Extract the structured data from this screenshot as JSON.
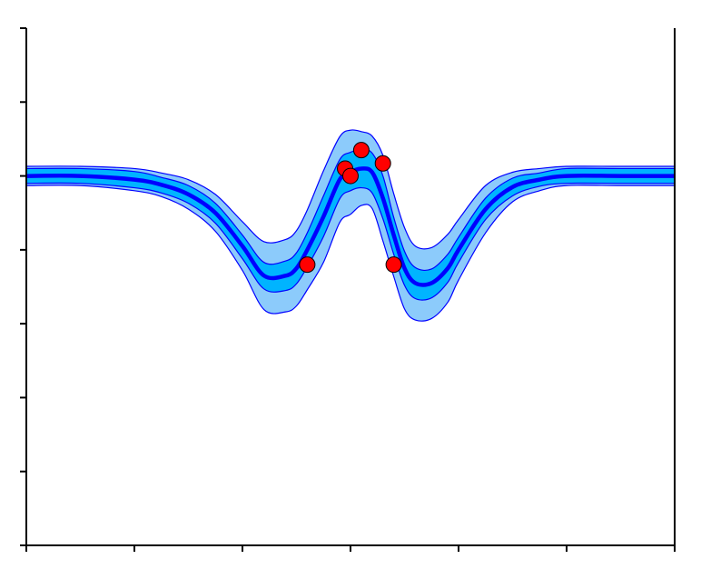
{
  "chart_data": {
    "type": "line",
    "title": "",
    "xlabel": "",
    "ylabel": "",
    "xlim": [
      -6,
      6
    ],
    "ylim": [
      -5,
      2
    ],
    "xticks": [
      -6,
      -4,
      -2,
      0,
      2,
      4,
      6
    ],
    "yticks": [
      -5,
      -4,
      -3,
      -2,
      -1,
      0,
      1,
      2
    ],
    "show_tick_labels": false,
    "grid": false,
    "legend": "none",
    "colors": {
      "mean": "#0000ff",
      "inner_band": "#00b4ff",
      "outer_band": "#8ccbfb",
      "band_edge": "#0000ff",
      "points": "#ff0000",
      "point_edge": "#000000"
    },
    "series": [
      {
        "kind": "mean",
        "x": [
          -6,
          -5,
          -4,
          -3.5,
          -3,
          -2.5,
          -2,
          -1.6,
          -1.2,
          -1,
          -0.8,
          -0.5,
          -0.2,
          0,
          0.2,
          0.4,
          0.6,
          0.8,
          1,
          1.2,
          1.5,
          1.8,
          2,
          2.5,
          3,
          3.5,
          4,
          5,
          6
        ],
        "y": [
          0,
          0,
          -0.05,
          -0.12,
          -0.25,
          -0.5,
          -0.95,
          -1.35,
          -1.35,
          -1.25,
          -1.0,
          -0.55,
          -0.05,
          0.05,
          0.1,
          0.05,
          -0.3,
          -0.8,
          -1.25,
          -1.45,
          -1.45,
          -1.25,
          -1.0,
          -0.45,
          -0.15,
          -0.05,
          0,
          0,
          0
        ]
      },
      {
        "kind": "inner_band",
        "x": [
          -6,
          -5,
          -4,
          -3.5,
          -3,
          -2.5,
          -2,
          -1.6,
          -1.2,
          -1,
          -0.8,
          -0.5,
          -0.2,
          0,
          0.2,
          0.4,
          0.6,
          0.8,
          1,
          1.2,
          1.5,
          1.8,
          2,
          2.5,
          3,
          3.5,
          4,
          5,
          6
        ],
        "upper": [
          0.1,
          0.1,
          0.06,
          -0.02,
          -0.13,
          -0.37,
          -0.8,
          -1.17,
          -1.15,
          -1.04,
          -0.77,
          -0.27,
          0.22,
          0.32,
          0.36,
          0.31,
          0.0,
          -0.56,
          -1.02,
          -1.24,
          -1.26,
          -1.06,
          -0.83,
          -0.3,
          -0.03,
          0.04,
          0.1,
          0.1,
          0.1
        ],
        "lower": [
          -0.1,
          -0.1,
          -0.16,
          -0.23,
          -0.37,
          -0.64,
          -1.12,
          -1.53,
          -1.55,
          -1.46,
          -1.23,
          -0.82,
          -0.31,
          -0.2,
          -0.16,
          -0.23,
          -0.58,
          -1.06,
          -1.48,
          -1.66,
          -1.65,
          -1.44,
          -1.17,
          -0.59,
          -0.27,
          -0.14,
          -0.1,
          -0.1,
          -0.1
        ]
      },
      {
        "kind": "outer_band",
        "x": [
          -6,
          -5,
          -4,
          -3.5,
          -3,
          -2.5,
          -2,
          -1.6,
          -1.2,
          -1,
          -0.8,
          -0.5,
          -0.2,
          0,
          0.2,
          0.4,
          0.6,
          0.8,
          1,
          1.2,
          1.5,
          1.8,
          2,
          2.5,
          3,
          3.5,
          4,
          5,
          6
        ],
        "upper": [
          0.13,
          0.13,
          0.1,
          0.04,
          -0.05,
          -0.25,
          -0.62,
          -0.89,
          -0.86,
          -0.74,
          -0.46,
          0.07,
          0.53,
          0.62,
          0.6,
          0.54,
          0.28,
          -0.24,
          -0.7,
          -0.95,
          -0.97,
          -0.79,
          -0.59,
          -0.13,
          0.05,
          0.1,
          0.13,
          0.13,
          0.13
        ],
        "lower": [
          -0.13,
          -0.13,
          -0.2,
          -0.28,
          -0.45,
          -0.75,
          -1.28,
          -1.81,
          -1.84,
          -1.76,
          -1.54,
          -1.17,
          -0.63,
          -0.52,
          -0.4,
          -0.44,
          -0.88,
          -1.36,
          -1.8,
          -1.95,
          -1.93,
          -1.71,
          -1.41,
          -0.77,
          -0.35,
          -0.2,
          -0.13,
          -0.13,
          -0.13
        ]
      },
      {
        "kind": "points",
        "x": [
          -0.8,
          -0.1,
          0,
          0.2,
          0.6,
          0.8
        ],
        "y": [
          -1.2,
          0.1,
          0,
          0.35,
          0.17,
          -1.2
        ]
      }
    ]
  }
}
